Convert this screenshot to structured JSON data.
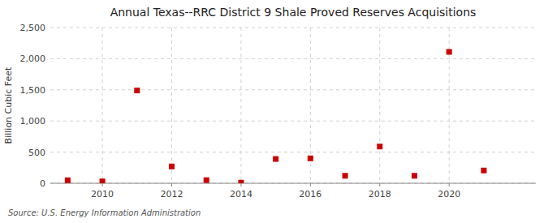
{
  "chart_data": {
    "type": "scatter",
    "title": "Annual Texas--RRC District 9 Shale Proved Reserves Acquisitions",
    "ylabel": "Billion Cubic Feet",
    "source": "Source: U.S. Energy Information Administration",
    "x": [
      2009,
      2010,
      2011,
      2012,
      2013,
      2014,
      2015,
      2016,
      2017,
      2018,
      2019,
      2020,
      2021
    ],
    "values": [
      48,
      30,
      1490,
      270,
      50,
      10,
      390,
      400,
      120,
      590,
      120,
      2110,
      205
    ],
    "color": "#cc0000",
    "marker": "square",
    "xlim": [
      2008.5,
      2022.5
    ],
    "xticks": [
      2010,
      2012,
      2014,
      2016,
      2018,
      2020
    ],
    "ylim": [
      0,
      2500
    ],
    "yticks": [
      0,
      500,
      {
        "value": 1000,
        "label": "1,000"
      },
      {
        "value": 1500,
        "label": "1,500"
      },
      {
        "value": 2000,
        "label": "2,000"
      },
      {
        "value": 2500,
        "label": "2,500"
      }
    ],
    "grid": true
  }
}
